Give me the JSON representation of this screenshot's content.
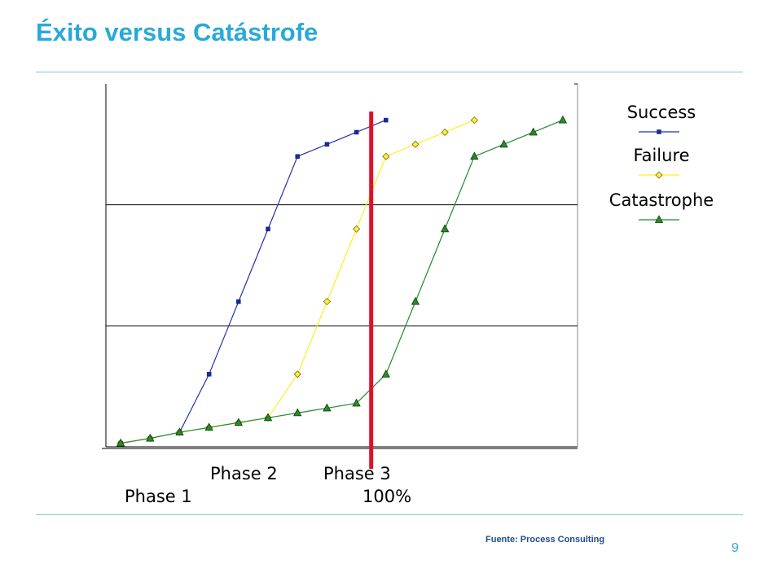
{
  "slide": {
    "title": "Éxito versus Catástrofe",
    "source": "Fuente: Process Consulting",
    "page_number": "9"
  },
  "chart_data": {
    "type": "line",
    "title": "",
    "xlabel": "",
    "ylabel": "",
    "x": [
      1,
      2,
      3,
      4,
      5,
      6,
      7,
      8,
      9,
      10,
      11,
      12,
      13,
      14,
      15
    ],
    "xlim": [
      0.5,
      16.5
    ],
    "ylim": [
      0,
      3
    ],
    "grid": "horizontal",
    "legend_position": "right",
    "x_annotations": [
      {
        "text": "Phase 1",
        "row": "lower"
      },
      {
        "text": "Phase 2",
        "row": "upper"
      },
      {
        "text": "Phase 3",
        "row": "upper"
      },
      {
        "text": "100%",
        "row": "lower"
      }
    ],
    "marker_line": {
      "x": 9.5,
      "color": "#e0102a"
    },
    "series": [
      {
        "name": "Success",
        "color": "#2233aa",
        "marker": "square",
        "points": [
          [
            1,
            0.03
          ],
          [
            2,
            0.07
          ],
          [
            3,
            0.12
          ],
          [
            4,
            0.6
          ],
          [
            5,
            1.2
          ],
          [
            6,
            1.8
          ],
          [
            7,
            2.4
          ],
          [
            8,
            2.5
          ],
          [
            9,
            2.6
          ],
          [
            10,
            2.7
          ]
        ]
      },
      {
        "name": "Failure",
        "color": "#ffee22",
        "marker": "diamond",
        "points": [
          [
            1,
            0.03
          ],
          [
            2,
            0.07
          ],
          [
            3,
            0.12
          ],
          [
            4,
            0.16
          ],
          [
            5,
            0.2
          ],
          [
            6,
            0.24
          ],
          [
            7,
            0.6
          ],
          [
            8,
            1.2
          ],
          [
            9,
            1.8
          ],
          [
            10,
            2.4
          ],
          [
            11,
            2.5
          ],
          [
            12,
            2.6
          ],
          [
            13,
            2.7
          ]
        ]
      },
      {
        "name": "Catastrophe",
        "color": "#1f8a2a",
        "marker": "triangle",
        "points": [
          [
            1,
            0.03
          ],
          [
            2,
            0.07
          ],
          [
            3,
            0.12
          ],
          [
            4,
            0.16
          ],
          [
            5,
            0.2
          ],
          [
            6,
            0.24
          ],
          [
            7,
            0.28
          ],
          [
            8,
            0.32
          ],
          [
            9,
            0.36
          ],
          [
            10,
            0.6
          ],
          [
            11,
            1.2
          ],
          [
            12,
            1.8
          ],
          [
            13,
            2.4
          ],
          [
            14,
            2.5
          ],
          [
            15,
            2.6
          ],
          [
            16,
            2.7
          ]
        ]
      }
    ]
  }
}
